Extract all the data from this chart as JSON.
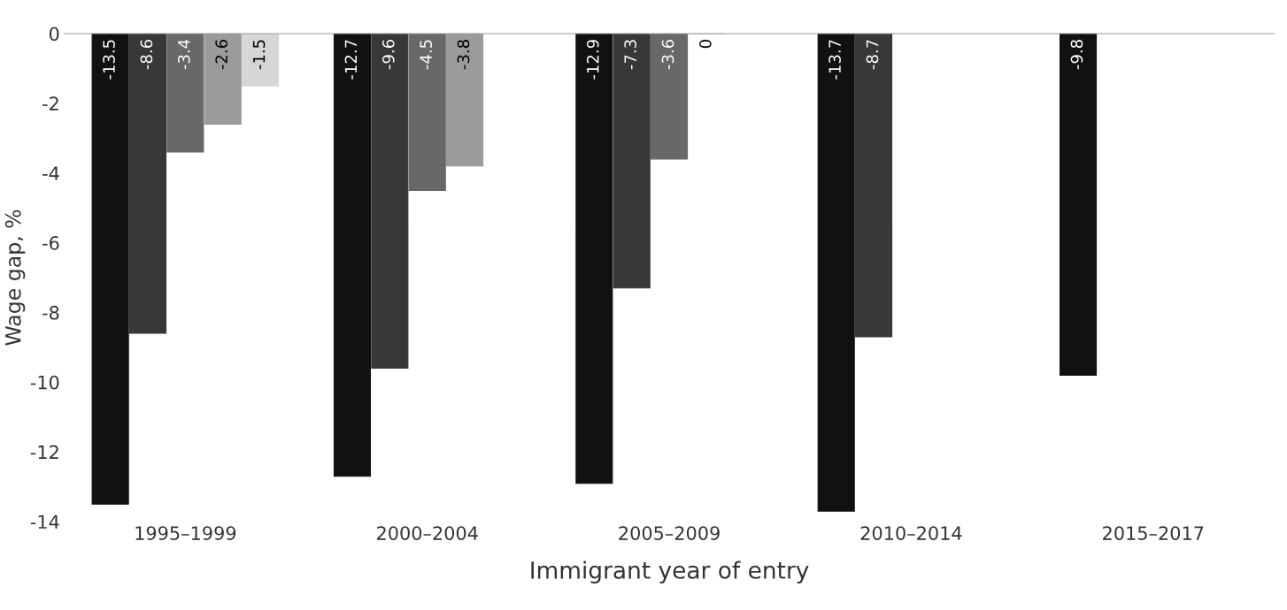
{
  "chart_data": {
    "type": "bar",
    "xlabel": "Immigrant year of entry",
    "ylabel": "Wage gap, %",
    "categories": [
      "1995–1999",
      "2000–2004",
      "2005–2009",
      "2010–2014",
      "2015–2017"
    ],
    "series": [
      {
        "color": "#111111",
        "values": [
          -13.5,
          -12.7,
          -12.9,
          -13.7,
          -9.8
        ]
      },
      {
        "color": "#383838",
        "values": [
          -8.6,
          -9.6,
          -7.3,
          -8.7,
          null
        ]
      },
      {
        "color": "#686868",
        "values": [
          -3.4,
          -4.5,
          -3.6,
          null,
          null
        ]
      },
      {
        "color": "#9b9b9b",
        "values": [
          -2.6,
          -3.8,
          0,
          null,
          null
        ]
      },
      {
        "color": "#d6d6d6",
        "values": [
          -1.5,
          null,
          null,
          null,
          null
        ]
      }
    ],
    "ylim": [
      -14,
      0
    ],
    "yticks": [
      0,
      -2,
      -4,
      -6,
      -8,
      -10,
      -12,
      -14
    ],
    "data_labels": true,
    "grid": false,
    "legend": false
  }
}
